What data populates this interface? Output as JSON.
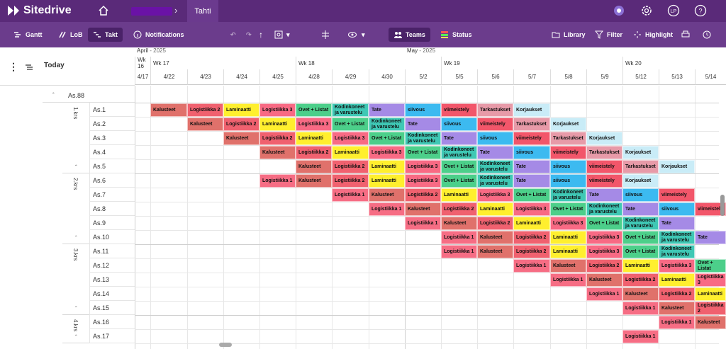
{
  "app": {
    "name": "Sitedrive",
    "tab": "Tahti"
  },
  "nav": {
    "home_icon": "home-icon",
    "right_icons": [
      "support-icon",
      "settings-icon",
      "user-avatar-LP",
      "help-icon"
    ],
    "avatar": "LP"
  },
  "toolbar": {
    "gantt": "Gantt",
    "lob": "LoB",
    "takt": "Takt",
    "notifications": "Notifications",
    "teams": "Teams",
    "status": "Status",
    "library": "Library",
    "filter": "Filter",
    "highlight": "Highlight"
  },
  "left": {
    "today": "Today",
    "parent": "As.88"
  },
  "months": [
    {
      "label": "April",
      "year": "- 2025"
    },
    {
      "label": "May",
      "year": "- 2025"
    }
  ],
  "weeks": [
    "Wk 16",
    "Wk 17",
    "Wk 18",
    "Wk 19",
    "Wk 20"
  ],
  "days": [
    "4/17",
    "4/22",
    "4/23",
    "4/24",
    "4/25",
    "4/28",
    "4/29",
    "4/30",
    "5/2",
    "5/5",
    "5/6",
    "5/7",
    "5/8",
    "5/9",
    "5/12",
    "5/13",
    "5/14"
  ],
  "groups": [
    {
      "label": "1.krs",
      "rows": [
        "As.1",
        "As.2",
        "As.3",
        "As.4",
        "As.5"
      ]
    },
    {
      "label": "2.krs",
      "rows": [
        "As.6",
        "As.7",
        "As.8",
        "As.9",
        "As.10"
      ]
    },
    {
      "label": "3.krs",
      "rows": [
        "As.11",
        "As.12",
        "As.13",
        "As.14",
        "As.15"
      ]
    },
    {
      "label": "4.krs",
      "rows": [
        "As.16",
        "As.17"
      ]
    }
  ],
  "colors": {
    "Kalusteet": "#e0716b",
    "Logistiikka 2": "#f0616f",
    "Laminaatti": "#ffef2e",
    "Logistiikka 3": "#f86a84",
    "Ovet + Listat": "#4ccf8a",
    "Kodinkoneet ja varustelu": "#3fc8b5",
    "Tate": "#a58ae6",
    "siivous": "#3cbaf0",
    "viimeistely": "#f2566a",
    "Tarkastukset": "#e79aa8",
    "Korjaukset": "#c9ecf7",
    "Logistiikka 1": "#f66d84"
  },
  "tasks": [
    [
      "Kalusteet",
      "Logistiikka 2",
      "Laminaatti",
      "Logistiikka 3",
      "Ovet + Listat",
      "Kodinkoneet ja varustelu",
      "Tate",
      "siivous",
      "viimeistely",
      "Tarkastukset",
      "Korjaukset"
    ],
    [
      "Kalusteet",
      "Logistiikka 2",
      "Laminaatti",
      "Logistiikka 3",
      "Ovet + Listat",
      "Kodinkoneet ja varustelu",
      "Tate",
      "siivous",
      "viimeistely",
      "Tarkastukset",
      "Korjaukset"
    ],
    [
      "Kalusteet",
      "Logistiikka 2",
      "Laminaatti",
      "Logistiikka 3",
      "Ovet + Listat",
      "Kodinkoneet ja varustelu",
      "Tate",
      "siivous",
      "viimeistely",
      "Tarkastukset",
      "Korjaukset"
    ],
    [
      "Kalusteet",
      "Logistiikka 2",
      "Laminaatti",
      "Logistiikka 3",
      "Ovet + Listat",
      "Kodinkoneet ja varustelu",
      "Tate",
      "siivous",
      "viimeistely",
      "Tarkastukset",
      "Korjaukset"
    ],
    [
      "Kalusteet",
      "Logistiikka 2",
      "Laminaatti",
      "Logistiikka 3",
      "Ovet + Listat",
      "Kodinkoneet ja varustelu",
      "Tate",
      "siivous",
      "viimeistely",
      "Tarkastukset",
      "Korjaukset"
    ],
    [
      "Logistiikka 1",
      "Kalusteet",
      "Logistiikka 2",
      "Laminaatti",
      "Logistiikka 3",
      "Ovet + Listat",
      "Kodinkoneet ja varustelu",
      "Tate",
      "siivous",
      "viimeistely",
      "Korjaukset"
    ],
    [
      "Logistiikka 1",
      "Kalusteet",
      "Logistiikka 2",
      "Laminaatti",
      "Logistiikka 3",
      "Ovet + Listat",
      "Kodinkoneet ja varustelu",
      "Tate",
      "siivous",
      "viimeistely"
    ],
    [
      "Logistiikka 1",
      "Kalusteet",
      "Logistiikka 2",
      "Laminaatti",
      "Logistiikka 3",
      "Ovet + Listat",
      "Kodinkoneet ja varustelu",
      "Tate",
      "siivous",
      "viimeistely"
    ],
    [
      "Logistiikka 1",
      "Kalusteet",
      "Logistiikka 2",
      "Laminaatti",
      "Logistiikka 3",
      "Ovet + Listat",
      "Kodinkoneet ja varustelu",
      "Tate"
    ],
    [
      "Logistiikka 1",
      "Kalusteet",
      "Logistiikka 2",
      "Laminaatti",
      "Logistiikka 3",
      "Ovet + Listat",
      "Kodinkoneet ja varustelu",
      "Tate"
    ],
    [
      "Logistiikka 1",
      "Kalusteet",
      "Logistiikka 2",
      "Laminaatti",
      "Logistiikka 3",
      "Ovet + Listat",
      "Kodinkoneet ja varustelu"
    ],
    [
      "Logistiikka 1",
      "Kalusteet",
      "Logistiikka 2",
      "Laminaatti",
      "Logistiikka 3",
      "Ovet + Listat"
    ],
    [
      "Logistiikka 1",
      "Kalusteet",
      "Logistiikka 2",
      "Laminaatti",
      "Logistiikka 3"
    ],
    [
      "Logistiikka 1",
      "Kalusteet",
      "Logistiikka 2",
      "Laminaatti"
    ],
    [
      "Logistiikka 1",
      "Kalusteet",
      "Logistiikka 2"
    ],
    [
      "Logistiikka 1",
      "Kalusteet"
    ],
    [
      "Logistiikka 1"
    ]
  ],
  "row_start_day": [
    1,
    2,
    3,
    4,
    5,
    4,
    6,
    7,
    8,
    9,
    9,
    11,
    12,
    13,
    14,
    15,
    14
  ]
}
